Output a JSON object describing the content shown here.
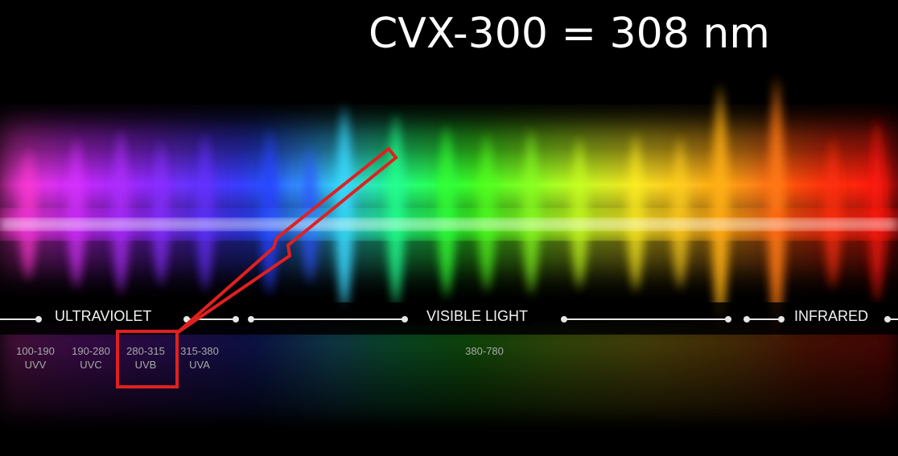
{
  "title": "CVX-300 = 308 nm",
  "bands": [
    {
      "label": "ULTRAVIOLET"
    },
    {
      "label": "VISIBLE LIGHT"
    },
    {
      "label": "INFRARED"
    }
  ],
  "ranges": [
    {
      "nm": "100-190",
      "name": "UVV"
    },
    {
      "nm": "190-280",
      "name": "UVC"
    },
    {
      "nm": "280-315",
      "name": "UVB"
    },
    {
      "nm": "315-380",
      "name": "UVA"
    },
    {
      "nm": "380-780",
      "name": ""
    }
  ],
  "highlight": {
    "range": "280-315",
    "color": "#e02020"
  },
  "colors": {
    "background": "#000000",
    "highlight": "#e02020",
    "text": "#f2f2f2",
    "muted_text": "#a8a8a8"
  }
}
